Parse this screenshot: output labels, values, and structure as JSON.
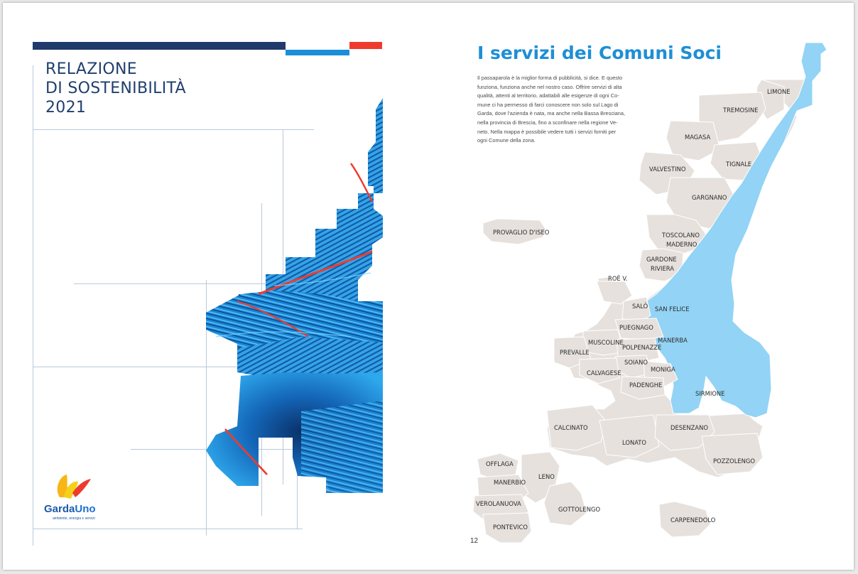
{
  "cover": {
    "title_lines": [
      "RELAZIONE",
      "DI SOSTENIBILITÀ",
      "2021"
    ],
    "brand_colors": {
      "navy": "#1f3a6b",
      "blue": "#1a8fd8",
      "red": "#ef3b2d"
    },
    "logo": {
      "name_part1": "Garda",
      "name_part2": "Uno",
      "tagline": "ambiente, energia e servizi"
    }
  },
  "page": {
    "title": "I servizi dei Comuni Soci",
    "intro_lines": [
      "Il passaparola è la miglior forma di pubblicità, si dice. E questo",
      "funziona, funziona anche nel nostro caso. Offrire servizi di alta",
      "qualità, attenti al territorio, adattabili alle esigenze di ogni Co-",
      "mune ci ha permesso di farci conoscere non solo sul Lago di",
      "Garda, dove l'azienda è nata, ma anche nella Bassa Bresciana,",
      "nella provincia di Brescia, fino a sconfinare nella regione Ve-",
      "neto. Nella mappa è possibile vedere tutti i servizi forniti per",
      "ogni Comune della zona."
    ],
    "page_number": "12"
  },
  "map": {
    "land_color": "#e6e1dd",
    "lake_color": "#93d3f5",
    "municipalities": {
      "limone": "LIMONE",
      "tremosine": "TREMOSINE",
      "magasa": "MAGASA",
      "tignale": "TIGNALE",
      "valvestino": "VALVESTINO",
      "gargnano": "GARGNANO",
      "provaglio": "PROVAGLIO D'ISEO",
      "toscolano": "TOSCOLANO",
      "maderno": "MADERNO",
      "gardone": "GARDONE",
      "riviera": "RIVIERA",
      "roe": "ROÈ V.",
      "salo": "SALÒ",
      "san_felice": "SAN FELICE",
      "puegnago": "PUEGNAGO",
      "manerba": "MANERBA",
      "muscoline": "MUSCOLINE",
      "polpenazze": "POLPENAZZE",
      "prevalle": "PREVALLE",
      "soiano": "SOIANO",
      "moniga": "MONIGA",
      "calvagese": "CALVAGESE",
      "padenghe": "PADENGHE",
      "sirmione": "SIRMIONE",
      "calcinato": "CALCINATO",
      "desenzano": "DESENZANO",
      "lonato": "LONATO",
      "pozzolengo": "POZZOLENGO",
      "offlaga": "OFFLAGA",
      "leno": "LENO",
      "manerbio": "MANERBIO",
      "verolanuova": "VEROLANUOVA",
      "gottolengo": "GOTTOLENGO",
      "carpenedolo": "CARPENEDOLO",
      "pontevico": "PONTEVICO"
    }
  }
}
